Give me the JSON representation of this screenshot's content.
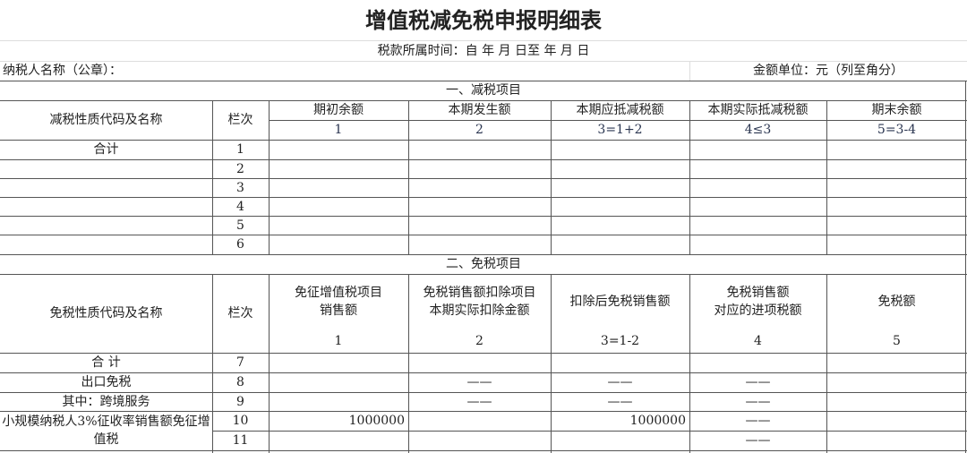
{
  "title": "增值税减免税申报明细表",
  "period": "税款所属时间：自    年    月  日至     年    月   日",
  "taxpayer_label": "纳税人名称（公章）：",
  "unit_label": "金额单位：元（列至角分）",
  "section1": {
    "title": "一、减税项目",
    "name_header": "减税性质代码及名称",
    "line_header": "栏次",
    "columns": [
      "期初余额",
      "本期发生额",
      "本期应抵减税额",
      "本期实际抵减税额",
      "期末余额"
    ],
    "column_numbers": [
      "1",
      "2",
      "3=1+2",
      "4≤3",
      "5=3-4"
    ],
    "rows": [
      {
        "name": "合计",
        "line": "1"
      },
      {
        "name": "",
        "line": "2"
      },
      {
        "name": "",
        "line": "3"
      },
      {
        "name": "",
        "line": "4"
      },
      {
        "name": "",
        "line": "5"
      },
      {
        "name": "",
        "line": "6"
      }
    ]
  },
  "section2": {
    "title": "二、免税项目",
    "name_header": "免税性质代码及名称",
    "line_header": "栏次",
    "columns": [
      "免征增值税项目\n销售额",
      "免税销售额扣除项目\n本期实际扣除金额",
      "扣除后免税销售额",
      "免税销售额\n对应的进项税额",
      "免税额"
    ],
    "column_numbers": [
      "1",
      "2",
      "3=1-2",
      "4",
      "5"
    ],
    "rows": [
      {
        "name": "合    计",
        "line": "7",
        "values": [
          "",
          "",
          "",
          "",
          ""
        ]
      },
      {
        "name": "出口免税",
        "line": "8",
        "values": [
          "",
          "——",
          "——",
          "——",
          ""
        ]
      },
      {
        "name": "        其中：跨境服务",
        "line": "9",
        "values": [
          "",
          "——",
          "——",
          "——",
          ""
        ]
      },
      {
        "name": "小规模纳税人3%征收率销售额免征增值税",
        "line": "10",
        "values": [
          "1000000",
          "",
          "1000000",
          "——",
          ""
        ]
      },
      {
        "name": "",
        "line": "11",
        "values": [
          "",
          "",
          "",
          "——",
          ""
        ]
      }
    ]
  }
}
